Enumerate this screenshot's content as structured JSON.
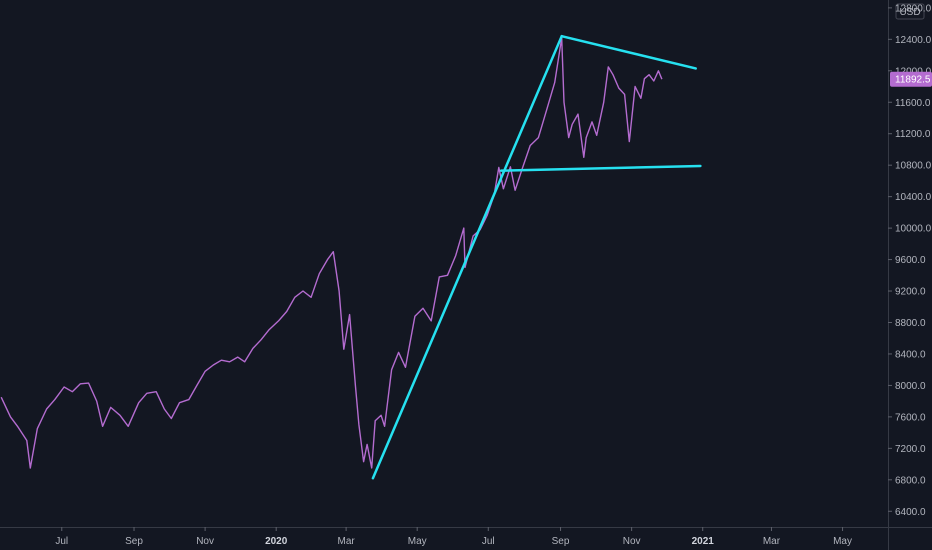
{
  "chart_data": {
    "type": "line",
    "currency": "USD",
    "last_price": "11892.5",
    "ylim": [
      6200,
      12900
    ],
    "y_ticks": [
      6400,
      6800,
      7200,
      7600,
      8000,
      8400,
      8800,
      9200,
      9600,
      10000,
      10400,
      10800,
      11200,
      11600,
      12000,
      12400,
      12800
    ],
    "y_tick_labels": [
      "6400.0",
      "6800.0",
      "7200.0",
      "7600.0",
      "8000.0",
      "8400.0",
      "8800.0",
      "9200.0",
      "9600.0",
      "10000.0",
      "10400.0",
      "10800.0",
      "11200.0",
      "11600.0",
      "12000.0",
      "12400.0",
      "12800.0"
    ],
    "x_ticks": [
      "2019-07-01",
      "2019-09-01",
      "2019-11-01",
      "2020-01-01",
      "2020-03-01",
      "2020-05-01",
      "2020-07-01",
      "2020-09-01",
      "2020-11-01",
      "2021-01-01",
      "2021-03-01",
      "2021-05-01"
    ],
    "x_tick_labels": [
      "Jul",
      "Sep",
      "Nov",
      "2020",
      "Mar",
      "May",
      "Jul",
      "Sep",
      "Nov",
      "2021",
      "Mar",
      "May"
    ],
    "x_tick_bold": [
      false,
      false,
      false,
      true,
      false,
      false,
      false,
      false,
      false,
      true,
      false,
      false
    ],
    "xlim": [
      "2019-05-09",
      "2021-06-09"
    ],
    "series": [
      {
        "color": "#b46cd0",
        "points": [
          [
            "2019-05-10",
            7850
          ],
          [
            "2019-05-18",
            7600
          ],
          [
            "2019-05-24",
            7480
          ],
          [
            "2019-06-01",
            7300
          ],
          [
            "2019-06-04",
            6950
          ],
          [
            "2019-06-10",
            7450
          ],
          [
            "2019-06-18",
            7700
          ],
          [
            "2019-06-25",
            7820
          ],
          [
            "2019-07-03",
            7980
          ],
          [
            "2019-07-10",
            7920
          ],
          [
            "2019-07-17",
            8020
          ],
          [
            "2019-07-24",
            8030
          ],
          [
            "2019-07-31",
            7800
          ],
          [
            "2019-08-05",
            7480
          ],
          [
            "2019-08-12",
            7720
          ],
          [
            "2019-08-20",
            7620
          ],
          [
            "2019-08-27",
            7480
          ],
          [
            "2019-09-05",
            7780
          ],
          [
            "2019-09-12",
            7900
          ],
          [
            "2019-09-20",
            7920
          ],
          [
            "2019-09-27",
            7700
          ],
          [
            "2019-10-03",
            7580
          ],
          [
            "2019-10-10",
            7780
          ],
          [
            "2019-10-18",
            7820
          ],
          [
            "2019-10-25",
            8000
          ],
          [
            "2019-11-01",
            8180
          ],
          [
            "2019-11-08",
            8260
          ],
          [
            "2019-11-15",
            8320
          ],
          [
            "2019-11-22",
            8300
          ],
          [
            "2019-11-29",
            8360
          ],
          [
            "2019-12-05",
            8300
          ],
          [
            "2019-12-12",
            8470
          ],
          [
            "2019-12-19",
            8580
          ],
          [
            "2019-12-26",
            8710
          ],
          [
            "2020-01-03",
            8820
          ],
          [
            "2020-01-10",
            8940
          ],
          [
            "2020-01-17",
            9120
          ],
          [
            "2020-01-24",
            9200
          ],
          [
            "2020-01-31",
            9120
          ],
          [
            "2020-02-07",
            9420
          ],
          [
            "2020-02-14",
            9600
          ],
          [
            "2020-02-19",
            9700
          ],
          [
            "2020-02-24",
            9200
          ],
          [
            "2020-02-28",
            8460
          ],
          [
            "2020-03-04",
            8900
          ],
          [
            "2020-03-09",
            8000
          ],
          [
            "2020-03-12",
            7500
          ],
          [
            "2020-03-16",
            7030
          ],
          [
            "2020-03-19",
            7250
          ],
          [
            "2020-03-23",
            6950
          ],
          [
            "2020-03-26",
            7550
          ],
          [
            "2020-03-31",
            7620
          ],
          [
            "2020-04-03",
            7480
          ],
          [
            "2020-04-09",
            8200
          ],
          [
            "2020-04-15",
            8420
          ],
          [
            "2020-04-21",
            8230
          ],
          [
            "2020-04-29",
            8880
          ],
          [
            "2020-05-06",
            8980
          ],
          [
            "2020-05-13",
            8820
          ],
          [
            "2020-05-20",
            9380
          ],
          [
            "2020-05-27",
            9400
          ],
          [
            "2020-06-03",
            9650
          ],
          [
            "2020-06-10",
            10000
          ],
          [
            "2020-06-11",
            9500
          ],
          [
            "2020-06-18",
            9900
          ],
          [
            "2020-06-24",
            9980
          ],
          [
            "2020-06-30",
            10160
          ],
          [
            "2020-07-06",
            10420
          ],
          [
            "2020-07-10",
            10770
          ],
          [
            "2020-07-14",
            10500
          ],
          [
            "2020-07-20",
            10780
          ],
          [
            "2020-07-24",
            10480
          ],
          [
            "2020-07-30",
            10750
          ],
          [
            "2020-08-06",
            11050
          ],
          [
            "2020-08-13",
            11150
          ],
          [
            "2020-08-20",
            11500
          ],
          [
            "2020-08-27",
            11850
          ],
          [
            "2020-09-02",
            12420
          ],
          [
            "2020-09-04",
            11600
          ],
          [
            "2020-09-08",
            11150
          ],
          [
            "2020-09-11",
            11320
          ],
          [
            "2020-09-16",
            11450
          ],
          [
            "2020-09-21",
            10900
          ],
          [
            "2020-09-23",
            11150
          ],
          [
            "2020-09-28",
            11350
          ],
          [
            "2020-10-02",
            11180
          ],
          [
            "2020-10-08",
            11600
          ],
          [
            "2020-10-12",
            12050
          ],
          [
            "2020-10-16",
            11950
          ],
          [
            "2020-10-21",
            11780
          ],
          [
            "2020-10-26",
            11700
          ],
          [
            "2020-10-30",
            11100
          ],
          [
            "2020-11-04",
            11800
          ],
          [
            "2020-11-09",
            11650
          ],
          [
            "2020-11-12",
            11900
          ],
          [
            "2020-11-16",
            11950
          ],
          [
            "2020-11-20",
            11870
          ],
          [
            "2020-11-24",
            12000
          ],
          [
            "2020-11-27",
            11892.5
          ]
        ]
      }
    ],
    "trendlines": [
      {
        "color": "#26e1f0",
        "from": [
          "2020-03-24",
          6820
        ],
        "to": [
          "2020-09-02",
          12440
        ]
      },
      {
        "color": "#26e1f0",
        "from": [
          "2020-09-02",
          12440
        ],
        "to": [
          "2020-12-26",
          12030
        ]
      },
      {
        "color": "#26e1f0",
        "from": [
          "2020-07-12",
          10730
        ],
        "to": [
          "2020-12-30",
          10790
        ]
      }
    ]
  }
}
